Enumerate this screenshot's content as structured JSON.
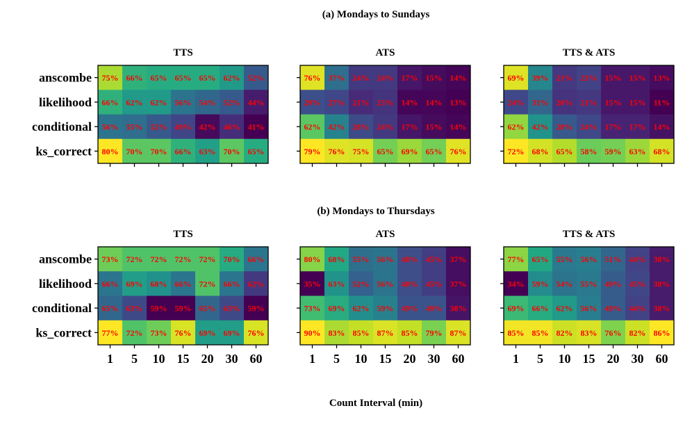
{
  "figure": {
    "section_a_title": "(a) Mondays to Sundays",
    "section_b_title": "(b) Mondays to Thursdays",
    "xlabel": "Count Interval (min)"
  },
  "chart_data": [
    {
      "type": "heatmap",
      "section": "a",
      "title": "TTS",
      "rows": [
        "anscombe",
        "likelihood",
        "conditional",
        "ks_correct"
      ],
      "columns": [
        "1",
        "5",
        "10",
        "15",
        "20",
        "30",
        "60"
      ],
      "values": [
        [
          75,
          66,
          65,
          65,
          65,
          62,
          52
        ],
        [
          66,
          62,
          62,
          56,
          54,
          52,
          44
        ],
        [
          56,
          55,
          52,
          49,
          42,
          46,
          41
        ],
        [
          80,
          70,
          70,
          66,
          63,
          70,
          65
        ]
      ],
      "annotation_suffix": "%",
      "annotation_color": "#ff0000",
      "colormap": "viridis"
    },
    {
      "type": "heatmap",
      "section": "a",
      "title": "ATS",
      "rows": [
        "anscombe",
        "likelihood",
        "conditional",
        "ks_correct"
      ],
      "columns": [
        "1",
        "5",
        "10",
        "15",
        "20",
        "30",
        "60"
      ],
      "values": [
        [
          76,
          37,
          24,
          24,
          17,
          15,
          14
        ],
        [
          29,
          27,
          21,
          23,
          14,
          14,
          13
        ],
        [
          62,
          42,
          28,
          24,
          17,
          15,
          14
        ],
        [
          79,
          76,
          75,
          65,
          69,
          65,
          76
        ]
      ],
      "annotation_suffix": "%",
      "annotation_color": "#ff0000",
      "colormap": "viridis"
    },
    {
      "type": "heatmap",
      "section": "a",
      "title": "TTS & ATS",
      "rows": [
        "anscombe",
        "likelihood",
        "conditional",
        "ks_correct"
      ],
      "columns": [
        "1",
        "5",
        "10",
        "15",
        "20",
        "30",
        "60"
      ],
      "values": [
        [
          69,
          39,
          21,
          23,
          15,
          15,
          13
        ],
        [
          24,
          31,
          20,
          21,
          15,
          15,
          11
        ],
        [
          62,
          42,
          28,
          24,
          17,
          17,
          14
        ],
        [
          72,
          68,
          65,
          58,
          59,
          63,
          68
        ]
      ],
      "annotation_suffix": "%",
      "annotation_color": "#ff0000",
      "colormap": "viridis"
    },
    {
      "type": "heatmap",
      "section": "b",
      "title": "TTS",
      "rows": [
        "anscombe",
        "likelihood",
        "conditional",
        "ks_correct"
      ],
      "columns": [
        "1",
        "5",
        "10",
        "15",
        "20",
        "30",
        "60"
      ],
      "values": [
        [
          73,
          72,
          72,
          72,
          72,
          70,
          66
        ],
        [
          66,
          69,
          68,
          66,
          72,
          66,
          62
        ],
        [
          65,
          63,
          59,
          59,
          65,
          63,
          59
        ],
        [
          77,
          72,
          73,
          76,
          69,
          69,
          76
        ]
      ],
      "annotation_suffix": "%",
      "annotation_color": "#ff0000",
      "colormap": "viridis"
    },
    {
      "type": "heatmap",
      "section": "b",
      "title": "ATS",
      "rows": [
        "anscombe",
        "likelihood",
        "conditional",
        "ks_correct"
      ],
      "columns": [
        "1",
        "5",
        "10",
        "15",
        "20",
        "30",
        "60"
      ],
      "values": [
        [
          80,
          68,
          55,
          56,
          48,
          45,
          37
        ],
        [
          35,
          63,
          52,
          56,
          48,
          45,
          37
        ],
        [
          73,
          69,
          62,
          59,
          49,
          49,
          38
        ],
        [
          90,
          83,
          85,
          87,
          85,
          79,
          87
        ]
      ],
      "annotation_suffix": "%",
      "annotation_color": "#ff0000",
      "colormap": "viridis"
    },
    {
      "type": "heatmap",
      "section": "b",
      "title": "TTS & ATS",
      "rows": [
        "anscombe",
        "likelihood",
        "conditional",
        "ks_correct"
      ],
      "columns": [
        "1",
        "5",
        "10",
        "15",
        "20",
        "30",
        "60"
      ],
      "values": [
        [
          77,
          65,
          55,
          56,
          51,
          44,
          38
        ],
        [
          34,
          59,
          54,
          55,
          49,
          45,
          38
        ],
        [
          69,
          66,
          62,
          56,
          49,
          44,
          38
        ],
        [
          85,
          85,
          82,
          83,
          76,
          82,
          86
        ]
      ],
      "annotation_suffix": "%",
      "annotation_color": "#ff0000",
      "colormap": "viridis"
    }
  ]
}
